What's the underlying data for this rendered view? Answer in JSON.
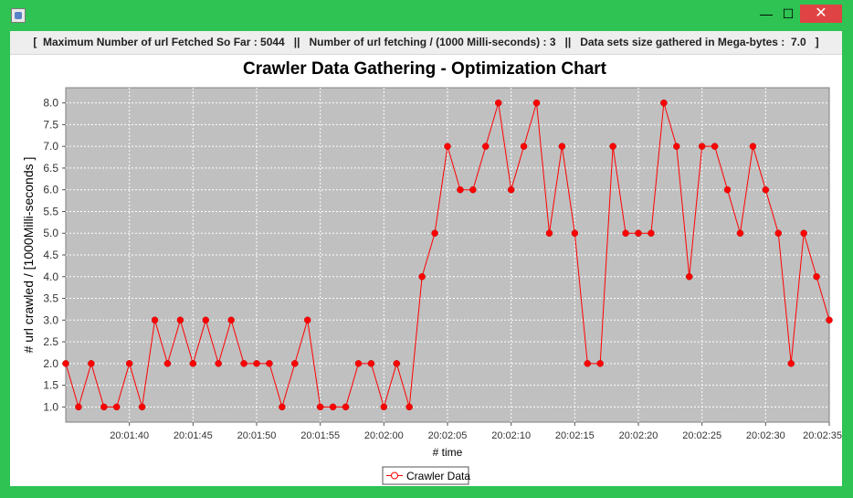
{
  "window": {
    "title": ""
  },
  "window_buttons": {
    "minimize": "—",
    "maximize": "☐",
    "close": "✕"
  },
  "status": {
    "text": "[  Maximum Number of url Fetched So Far : 5044   ||   Number of url fetching / (1000 Milli-seconds) : 3   ||   Data sets size gathered in Mega-bytes :  7.0   ]"
  },
  "chart_data": {
    "type": "line",
    "title": "Crawler Data Gathering - Optimization Chart",
    "xlabel": "# time",
    "ylabel": "# url crawled / [1000Milli-seconds ]",
    "ylim": [
      0.65,
      8.35
    ],
    "xlim_seconds": [
      0,
      60
    ],
    "grid": true,
    "legend_position": "bottom-center",
    "y_ticks": [
      "1.0",
      "1.5",
      "2.0",
      "2.5",
      "3.0",
      "3.5",
      "4.0",
      "4.5",
      "5.0",
      "5.5",
      "6.0",
      "6.5",
      "7.0",
      "7.5",
      "8.0"
    ],
    "x_tick_labels": [
      "20:01:40",
      "20:01:45",
      "20:01:50",
      "20:01:55",
      "20:02:00",
      "20:02:05",
      "20:02:10",
      "20:02:15",
      "20:02:20",
      "20:02:25",
      "20:02:30",
      "20:02:35"
    ],
    "x_tick_seconds": [
      5,
      10,
      15,
      20,
      25,
      30,
      35,
      40,
      45,
      50,
      55,
      60
    ],
    "series": [
      {
        "name": "Crawler Data",
        "color": "#ff0000",
        "values": [
          2,
          1,
          2,
          1,
          1,
          2,
          1,
          3,
          2,
          3,
          2,
          3,
          2,
          3,
          2,
          2,
          2,
          1,
          2,
          3,
          1,
          1,
          1,
          2,
          2,
          1,
          2,
          1,
          4,
          5,
          7,
          6,
          6,
          7,
          8,
          6,
          7,
          8,
          5,
          7,
          5,
          2,
          2,
          7,
          5,
          5,
          5,
          8,
          7,
          4,
          7,
          7,
          6,
          5,
          7,
          6,
          5,
          2,
          5,
          4,
          3
        ]
      }
    ]
  }
}
